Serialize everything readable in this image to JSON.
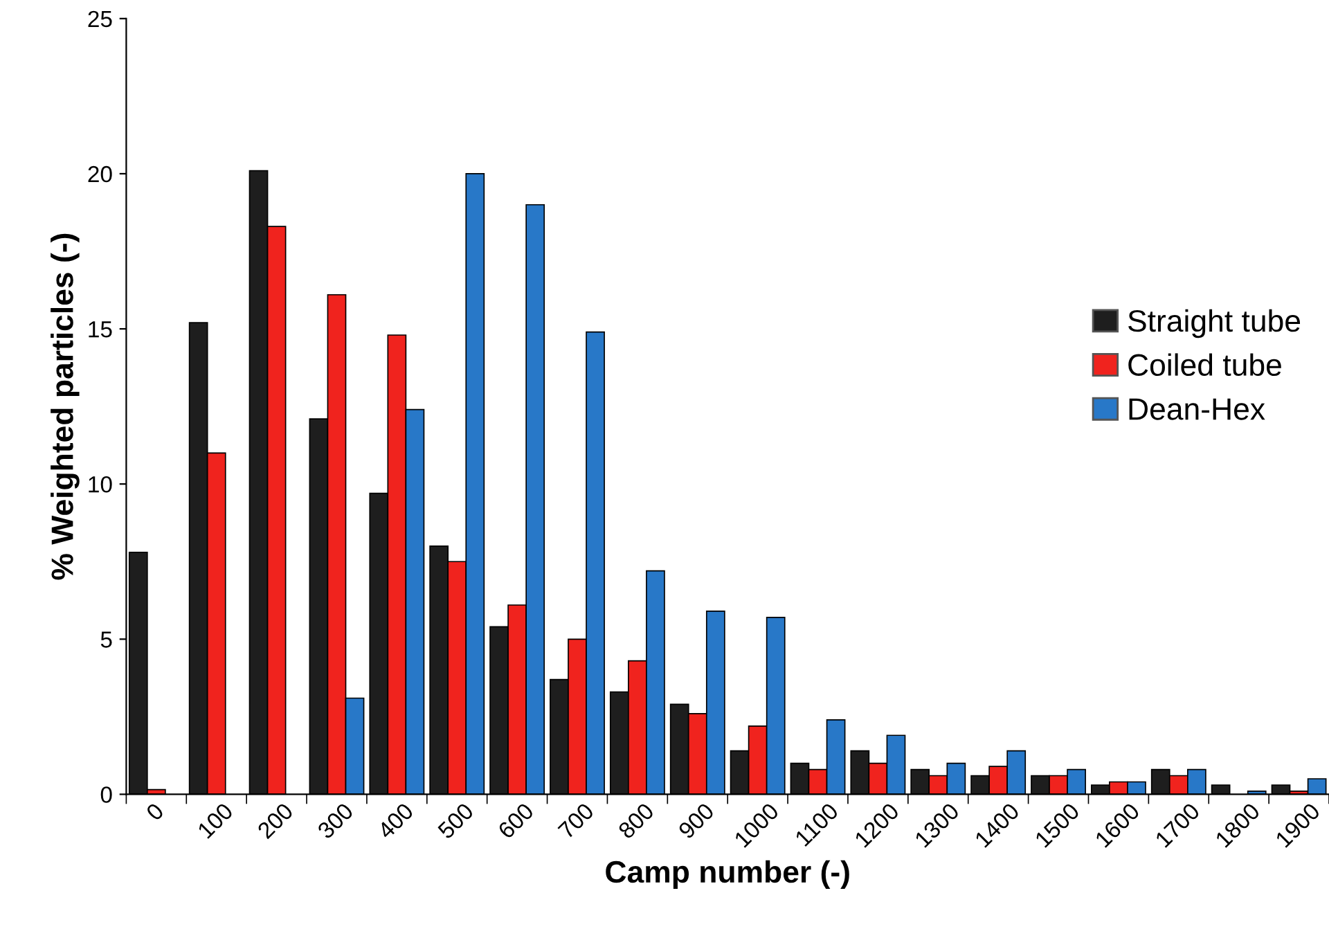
{
  "chart_data": {
    "type": "bar",
    "xlabel": "Camp number (-)",
    "ylabel": "% Weighted particles (-)",
    "categories": [
      "0",
      "100",
      "200",
      "300",
      "400",
      "500",
      "600",
      "700",
      "800",
      "900",
      "1000",
      "1100",
      "1200",
      "1300",
      "1400",
      "1500",
      "1600",
      "1700",
      "1800",
      "1900"
    ],
    "series": [
      {
        "name": "Straight tube",
        "color": "#1e1e1e",
        "values": [
          7.8,
          15.2,
          20.1,
          12.1,
          9.7,
          8.0,
          5.4,
          3.7,
          3.3,
          2.9,
          1.4,
          1.0,
          1.4,
          0.8,
          0.6,
          0.6,
          0.3,
          0.8,
          0.3,
          0.3
        ]
      },
      {
        "name": "Coiled tube",
        "color": "#f0231e",
        "values": [
          0.15,
          11.0,
          18.3,
          16.1,
          14.8,
          7.5,
          6.1,
          5.0,
          4.3,
          2.6,
          2.2,
          0.8,
          1.0,
          0.6,
          0.9,
          0.6,
          0.4,
          0.6,
          null,
          0.1
        ]
      },
      {
        "name": "Dean-Hex",
        "color": "#2878c8",
        "values": [
          null,
          null,
          null,
          3.1,
          12.4,
          20.0,
          19.0,
          14.9,
          7.2,
          5.9,
          5.7,
          2.4,
          1.9,
          1.0,
          1.4,
          0.8,
          0.4,
          0.8,
          0.1,
          0.5
        ]
      }
    ],
    "ylim": [
      0,
      25
    ],
    "yticks": [
      0,
      5,
      10,
      15,
      20,
      25
    ],
    "grid": false,
    "legend": "right"
  }
}
